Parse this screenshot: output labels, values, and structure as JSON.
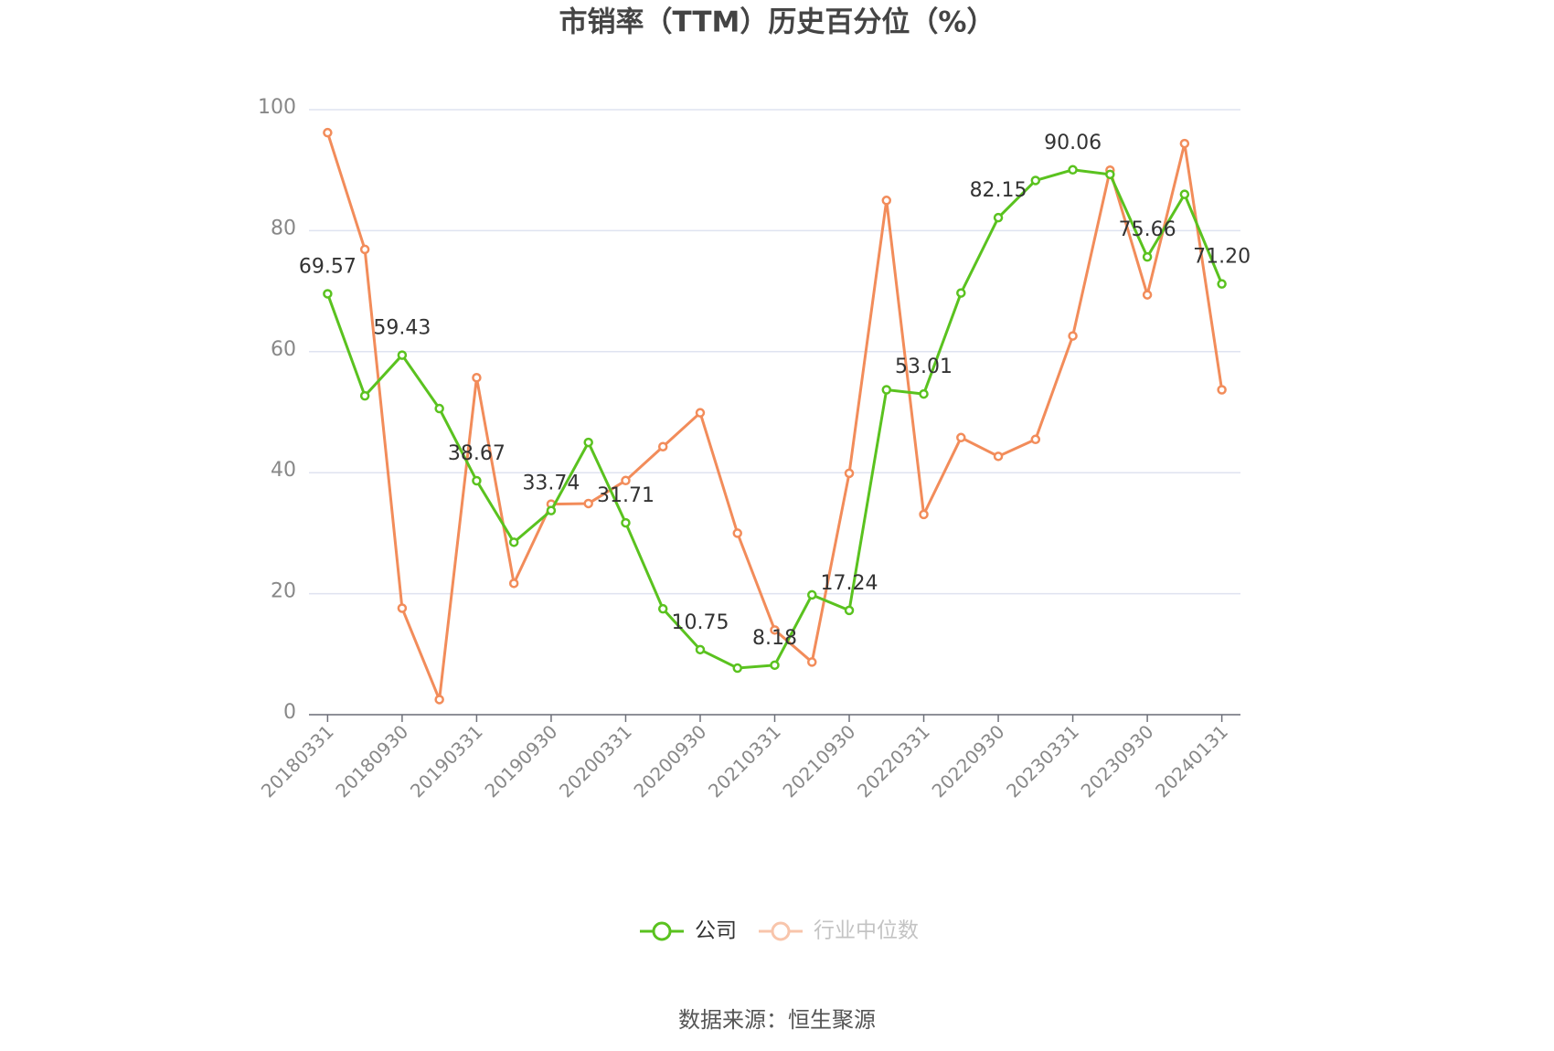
{
  "chart_data": {
    "type": "line",
    "title": "市销率（TTM）历史百分位（%）",
    "source": "数据来源：恒生聚源",
    "categories": [
      "20180331",
      null,
      "20180930",
      null,
      "20190331",
      null,
      "20190930",
      null,
      "20200331",
      null,
      "20200930",
      null,
      "20210331",
      null,
      "20210930",
      null,
      "20220331",
      null,
      "20220930",
      null,
      "20230331",
      null,
      "20230930",
      null,
      "20240131"
    ],
    "series": [
      {
        "name": "公司",
        "color": "#5ac21f",
        "values": [
          69.57,
          52.7,
          59.43,
          50.6,
          38.67,
          28.5,
          33.74,
          45.0,
          31.71,
          17.5,
          10.75,
          7.7,
          8.18,
          19.8,
          17.24,
          53.7,
          53.01,
          69.7,
          82.15,
          88.3,
          90.06,
          89.3,
          75.66,
          86.0,
          71.2
        ],
        "value_labels": [
          "69.57",
          null,
          "59.43",
          null,
          "38.67",
          null,
          "33.74",
          null,
          "31.71",
          null,
          "10.75",
          null,
          "8.18",
          null,
          "17.24",
          null,
          "53.01",
          null,
          "82.15",
          null,
          "90.06",
          null,
          "75.66",
          null,
          "71.20"
        ]
      },
      {
        "name": "行业中位数",
        "color": "#f28c5a",
        "values": [
          96.2,
          76.9,
          17.6,
          2.5,
          55.7,
          21.7,
          34.8,
          34.9,
          38.7,
          44.3,
          49.9,
          30.0,
          14.0,
          8.7,
          39.9,
          85.0,
          33.1,
          45.8,
          42.7,
          45.5,
          62.6,
          90.0,
          69.4,
          94.4,
          53.7
        ]
      }
    ],
    "ylim": [
      0,
      100
    ],
    "yticks": [
      0,
      20,
      40,
      60,
      80,
      100
    ],
    "grid": true
  }
}
